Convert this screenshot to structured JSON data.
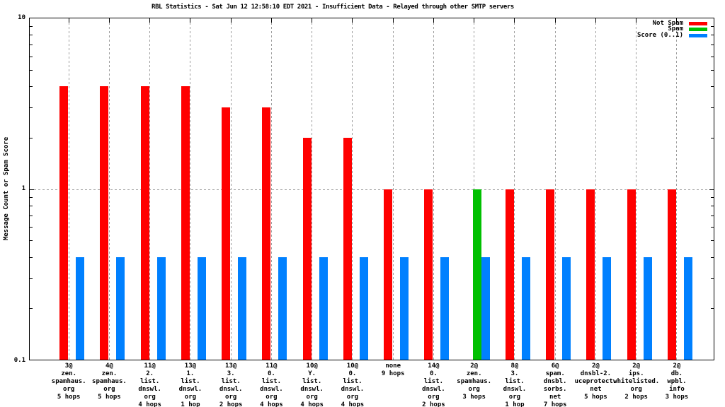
{
  "title": "RBL Statistics - Sat Jun 12 12:58:10 EDT 2021 - Insufficient Data - Relayed through other SMTP servers",
  "chart_data": {
    "type": "bar",
    "yscale": "log",
    "ylabel": "Message Count or Spam Score",
    "ylim": [
      0.1,
      10
    ],
    "ytick_labels": {
      "top": "10",
      "mid": "1",
      "bottom": "0.1"
    },
    "grid": true,
    "legend_position": "top-right-inside",
    "legend": [
      {
        "label": "Not Spam",
        "color": "#ff0000"
      },
      {
        "label": "Spam",
        "color": "#00c000"
      },
      {
        "label": "Score (0..1)",
        "color": "#0080ff"
      }
    ],
    "categories": [
      [
        "3@",
        "zen.",
        "spamhaus.",
        "org",
        "5 hops"
      ],
      [
        "4@",
        "zen.",
        "spamhaus.",
        "org",
        "5 hops"
      ],
      [
        "11@",
        "2.",
        "list.",
        "dnswl.",
        "org",
        "4 hops"
      ],
      [
        "13@",
        "1.",
        "list.",
        "dnswl.",
        "org",
        "1 hop"
      ],
      [
        "13@",
        "3.",
        "list.",
        "dnswl.",
        "org",
        "2 hops"
      ],
      [
        "11@",
        "0.",
        "list.",
        "dnswl.",
        "org",
        "4 hops"
      ],
      [
        "10@",
        "Y.",
        "list.",
        "dnswl.",
        "org",
        "4 hops"
      ],
      [
        "10@",
        "0.",
        "list.",
        "dnswl.",
        "org",
        "4 hops"
      ],
      [
        "none",
        "9 hops"
      ],
      [
        "14@",
        "0.",
        "list.",
        "dnswl.",
        "org",
        "2 hops"
      ],
      [
        "2@",
        "zen.",
        "spamhaus.",
        "org",
        "3 hops"
      ],
      [
        "8@",
        "3.",
        "list.",
        "dnswl.",
        "org",
        "1 hop"
      ],
      [
        "6@",
        "spam.",
        "dnsbl.",
        "sorbs.",
        "net",
        "7 hops"
      ],
      [
        "2@",
        "dnsbl-2.",
        "uceprotect.",
        "net",
        "5 hops"
      ],
      [
        "2@",
        "ips.",
        "whitelisted.",
        "org",
        "2 hops"
      ],
      [
        "2@",
        "db.",
        "wpbl.",
        "info",
        "3 hops"
      ]
    ],
    "series": [
      {
        "name": "Not Spam",
        "color": "#ff0000",
        "values": [
          4,
          4,
          4,
          4,
          3,
          3,
          2,
          2,
          1,
          1,
          0,
          1,
          1,
          1,
          1,
          1
        ]
      },
      {
        "name": "Spam",
        "color": "#00c000",
        "values": [
          0,
          0,
          0,
          0,
          0,
          0,
          0,
          0,
          0,
          0,
          1,
          0,
          0,
          0,
          0,
          0
        ]
      },
      {
        "name": "Score (0..1)",
        "color": "#0080ff",
        "values": [
          0.4,
          0.4,
          0.4,
          0.4,
          0.4,
          0.4,
          0.4,
          0.4,
          0.4,
          0.4,
          0.4,
          0.4,
          0.4,
          0.4,
          0.4,
          0.4
        ]
      }
    ]
  }
}
